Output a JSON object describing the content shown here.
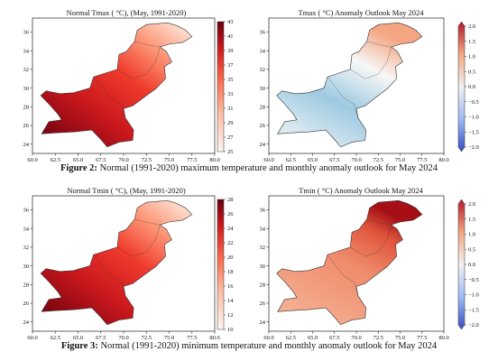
{
  "figures": [
    {
      "caption_bold": "Figure 2:",
      "caption_text": " Normal (1991-2020) maximum temperature and monthly anomaly outlook for May 2024",
      "left": {
        "title": "Normal Tmax ( °C),  (May, 1991-2020)",
        "colorbar_ticks": [
          "43",
          "41",
          "39",
          "37",
          "35",
          "33",
          "31",
          "29",
          "27",
          "25"
        ],
        "palette": "reds"
      },
      "right": {
        "title": "Tmax ( °C) Anomaly Outlook  May 2024",
        "colorbar_ticks": [
          "2.0",
          "1.5",
          "1.0",
          "0.5",
          "0.0",
          "−0.5",
          "−1.0",
          "−1.5",
          "−2.0"
        ],
        "palette": "diverging"
      }
    },
    {
      "caption_bold": "Figure 3:",
      "caption_text": " Normal (1991-2020) minimum temperature and monthly anomaly outlook for May 2024",
      "left": {
        "title": "Normal Tmin ( °C),  (May, 1991-2020)",
        "colorbar_ticks": [
          "28",
          "26",
          "24",
          "22",
          "20",
          "18",
          "16",
          "14",
          "12",
          "10"
        ],
        "palette": "reds"
      },
      "right": {
        "title": "Tmin ( °C) Anomaly Outlook  May 2024",
        "colorbar_ticks": [
          "2.0",
          "1.5",
          "1.0",
          "0.5",
          "0.0",
          "−0.5",
          "−1.0",
          "−1.5",
          "−2.0"
        ],
        "palette": "diverging"
      }
    }
  ],
  "axes": {
    "x_ticks": [
      "60.0",
      "62.5",
      "65.0",
      "67.5",
      "70.0",
      "72.5",
      "75.0",
      "77.5",
      "80.0"
    ],
    "y_ticks": [
      "36",
      "34",
      "32",
      "30",
      "28",
      "26",
      "24"
    ]
  },
  "colors": {
    "dark_red": "#67000d",
    "red": "#cb181d",
    "mid_red": "#ef3b2c",
    "light_red": "#fc9272",
    "pale": "#fee0d2",
    "anom_blue": "#9ecae1",
    "anom_white": "#f7f7f7",
    "anom_pink": "#f4a582"
  }
}
